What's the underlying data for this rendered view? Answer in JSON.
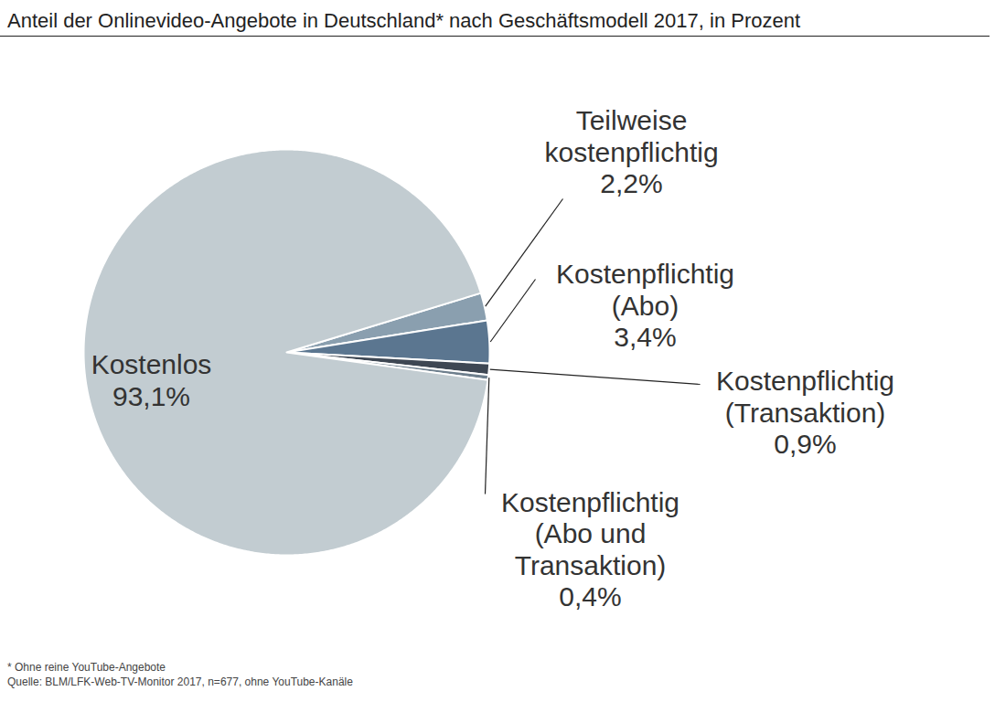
{
  "chart_data": {
    "type": "pie",
    "title": "Anteil der Onlinevideo-Angebote in Deutschland* nach Geschäftsmodell 2017, in Prozent",
    "categories": [
      "Teilweise kostenpflichtig",
      "Kostenpflichtig (Abo)",
      "Kostenpflichtig (Transaktion)",
      "Kostenpflichtig (Abo und Transaktion)",
      "Kostenlos"
    ],
    "values": [
      2.2,
      3.4,
      0.9,
      0.4,
      93.1
    ],
    "value_labels": [
      "2,2%",
      "3,4%",
      "0,9%",
      "0,4%",
      "93,1%"
    ],
    "colors": [
      "#8a9faf",
      "#5b7690",
      "#3e4753",
      "#6e7f8d",
      "#c2ccd1"
    ],
    "data_labels": true,
    "notes": [
      "* Ohne reine YouTube-Angebote",
      "Quelle: BLM/LFK-Web-TV-Monitor 2017, n=677, ohne YouTube-Kanäle"
    ]
  }
}
